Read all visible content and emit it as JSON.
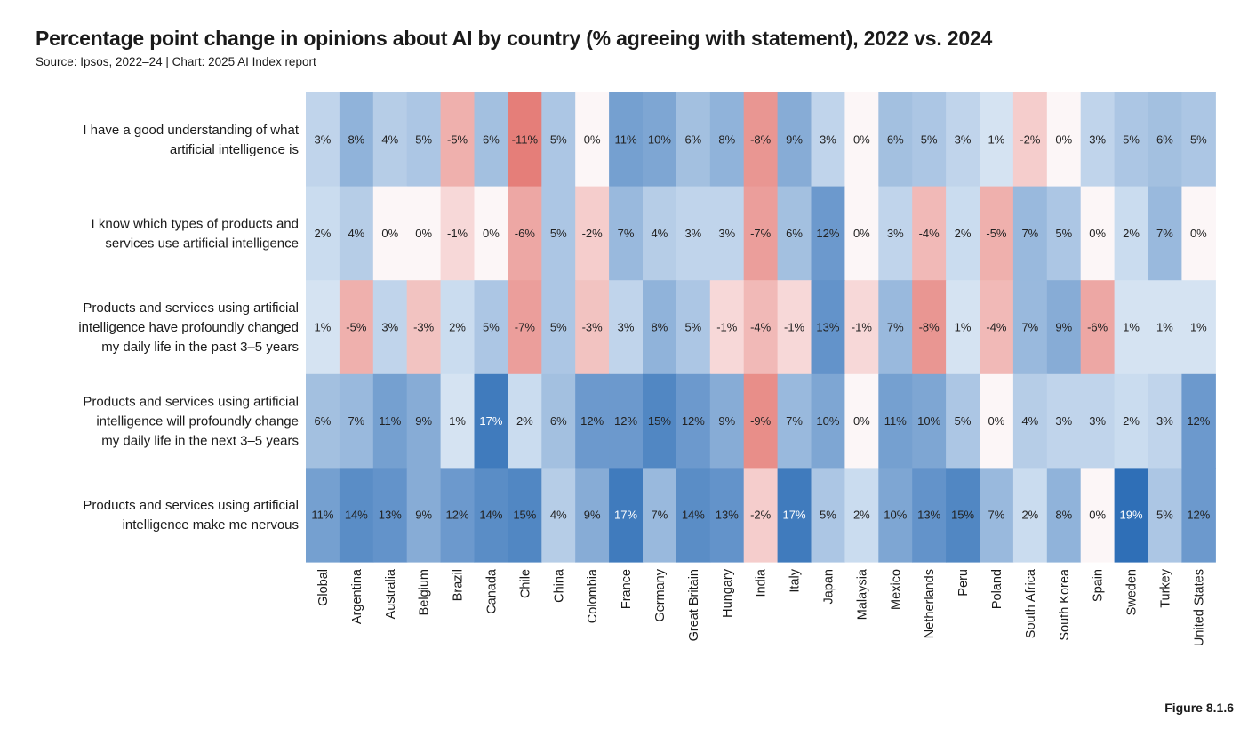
{
  "chart_data": {
    "type": "heatmap",
    "title": "Percentage point change in opinions about AI by country (% agreeing with statement), 2022 vs. 2024",
    "subtitle": "Source: Ipsos, 2022–24 | Chart: 2025 AI Index report",
    "value_suffix": "%",
    "color_negative": "#d9443c",
    "color_positive": "#2f6fb7",
    "color_neutral": "#ffffff",
    "rows": [
      [
        "I have a good understanding of what",
        "artificial intelligence is"
      ],
      [
        "I know which types of products and",
        "services use artificial intelligence"
      ],
      [
        "Products and services using artificial",
        "intelligence have profoundly changed",
        "my daily life in the past 3–5 years"
      ],
      [
        "Products and services using artificial",
        "intelligence will profoundly change",
        "my daily life in the next 3–5 years"
      ],
      [
        "Products and services using artificial",
        "intelligence make me nervous"
      ]
    ],
    "columns": [
      "Global",
      "Argentina",
      "Australia",
      "Belgium",
      "Brazil",
      "Canada",
      "Chile",
      "China",
      "Colombia",
      "France",
      "Germany",
      "Great Britain",
      "Hungary",
      "India",
      "Italy",
      "Japan",
      "Malaysia",
      "Mexico",
      "Netherlands",
      "Peru",
      "Poland",
      "South Africa",
      "South Korea",
      "Spain",
      "Sweden",
      "Turkey",
      "United States"
    ],
    "values": [
      [
        3,
        8,
        4,
        5,
        -5,
        6,
        -11,
        5,
        0,
        11,
        10,
        6,
        8,
        -8,
        9,
        3,
        0,
        6,
        5,
        3,
        1,
        -2,
        0,
        3,
        5,
        6,
        5
      ],
      [
        2,
        4,
        0,
        0,
        -1,
        0,
        -6,
        5,
        -2,
        7,
        4,
        3,
        3,
        -7,
        6,
        12,
        0,
        3,
        -4,
        2,
        -5,
        7,
        5,
        0,
        2,
        7,
        0
      ],
      [
        1,
        -5,
        3,
        -3,
        2,
        5,
        -7,
        5,
        -3,
        3,
        8,
        5,
        -1,
        -4,
        -1,
        13,
        -1,
        7,
        -8,
        1,
        -4,
        7,
        9,
        -6,
        1,
        1,
        1
      ],
      [
        6,
        7,
        11,
        9,
        1,
        17,
        2,
        6,
        12,
        12,
        15,
        12,
        9,
        -9,
        7,
        10,
        0,
        11,
        10,
        5,
        0,
        4,
        3,
        3,
        2,
        3,
        12
      ],
      [
        11,
        14,
        13,
        9,
        12,
        14,
        15,
        4,
        9,
        17,
        7,
        14,
        13,
        -2,
        17,
        5,
        2,
        10,
        13,
        15,
        7,
        2,
        8,
        0,
        19,
        5,
        12
      ]
    ]
  },
  "figure_label": "Figure 8.1.6"
}
